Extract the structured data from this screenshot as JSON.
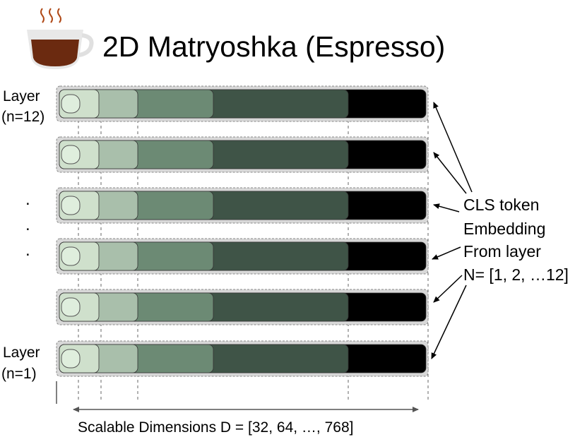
{
  "header": {
    "title": "2D Matryoshka (Espresso)"
  },
  "layer_labels": {
    "top": [
      "Layer",
      "(n=12)"
    ],
    "bottom": [
      "Layer",
      "(n=1)"
    ],
    "ellipsis": [
      ".",
      ".",
      "."
    ]
  },
  "annotation": [
    "CLS token",
    "Embedding",
    "From layer",
    "N= [1, 2, …12]"
  ],
  "axis_label": "Scalable Dimensions D = [32, 64, …, 768]"
}
